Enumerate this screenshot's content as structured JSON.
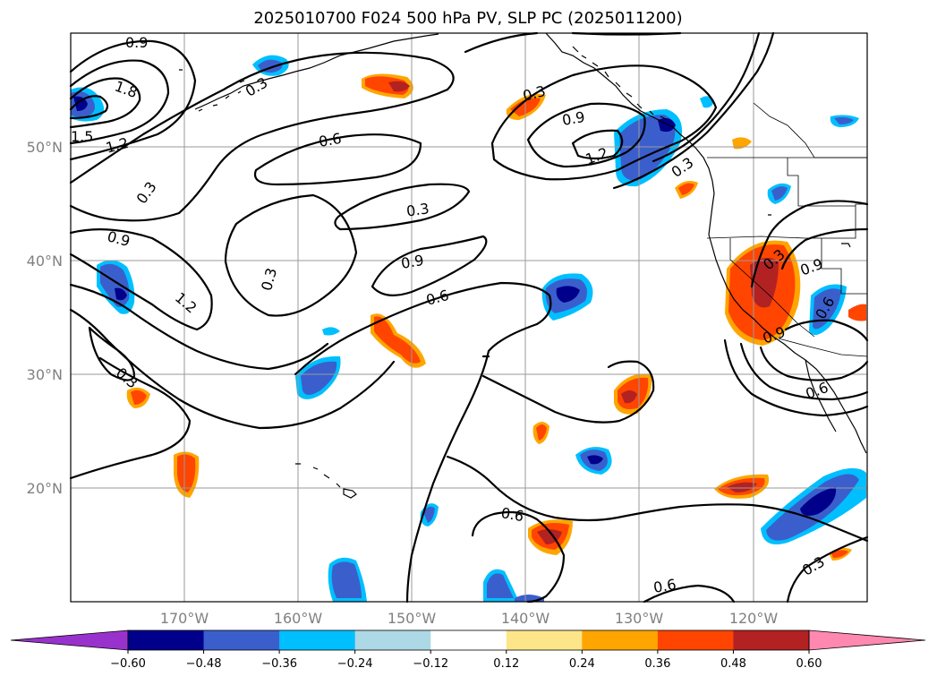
{
  "title": "2025010700 F024 500 hPa PV, SLP PC (2025011200)",
  "lat_labels": [
    "50°N",
    "40°N",
    "30°N",
    "20°N"
  ],
  "lon_labels": [
    "170°W",
    "160°W",
    "150°W",
    "140°W",
    "130°W",
    "120°W"
  ],
  "colorbar": {
    "ticks": [
      "−0.60",
      "−0.48",
      "−0.36",
      "−0.24",
      "−0.12",
      "0.12",
      "0.24",
      "0.36",
      "0.48",
      "0.60"
    ],
    "colors": [
      "#9932cc",
      "#00008b",
      "#3a5fcd",
      "#00bfff",
      "#add8e6",
      "#ffffff",
      "#fde68a",
      "#ffa500",
      "#ff4500",
      "#b22222",
      "#ff88b0"
    ]
  },
  "contour_labels": [
    "0.9",
    "1.8",
    "1.5",
    "1.2",
    "0.3",
    "0.6",
    "0.3",
    "0.9",
    "1.2",
    "0.3",
    "0.9",
    "0.3",
    "1.2",
    "0.6",
    "0.3",
    "0.9",
    "0.6",
    "0.3",
    "0.3",
    "0.9",
    "0.9",
    "0.6",
    "0.3",
    "0.6",
    "0.6",
    "0.3"
  ],
  "map": {
    "projection": "cylindrical",
    "lon_range": [
      -180,
      -110
    ],
    "lat_range": [
      10,
      60
    ],
    "field_shaded": "500 hPa PV",
    "field_contoured": "SLP PC"
  }
}
